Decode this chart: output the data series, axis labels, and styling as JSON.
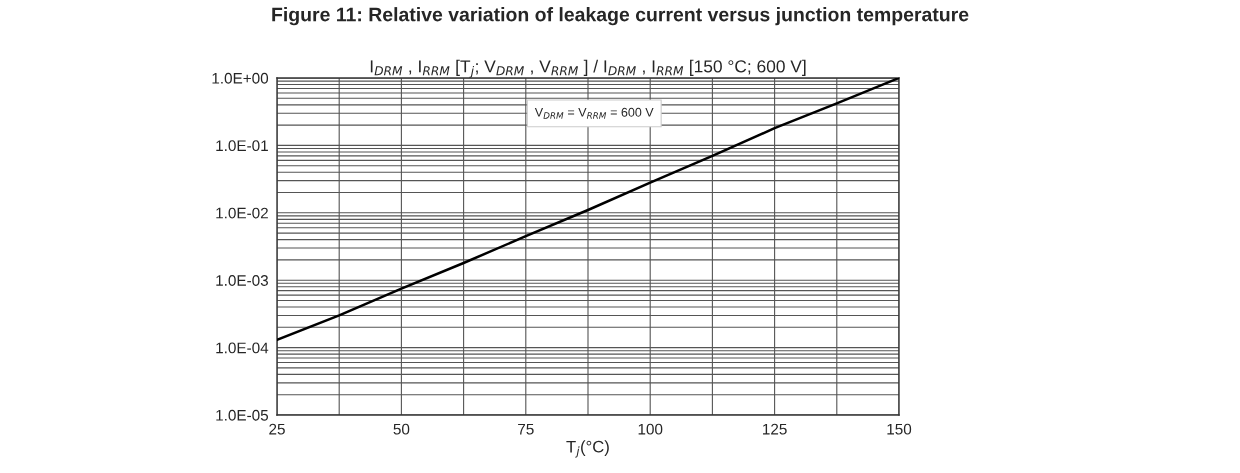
{
  "chart_data": {
    "type": "line",
    "title": "Figure 11: Relative variation of leakage current versus junction temperature",
    "ylabel": "I$_{DRM}$ , I$_{RRM}$ [T$_{j}$; V$_{DRM}$ , V$_{RRM}$ ] / I$_{DRM}$ , I$_{RRM}$ [150 °C; 600 V]",
    "xlabel": "T$_{j}$(°C)",
    "annotations": [
      "V$_{DRM}$ = V$_{RRM}$ = 600 V"
    ],
    "x": [
      25,
      37.5,
      50,
      62.5,
      75,
      87.5,
      100,
      112.5,
      125,
      137.5,
      150
    ],
    "series": [
      {
        "color": "#000000",
        "values": [
          0.00013,
          0.0003,
          0.00075,
          0.0018,
          0.0045,
          0.011,
          0.028,
          0.07,
          0.18,
          0.42,
          1.0
        ]
      }
    ],
    "log": "y",
    "grid": true,
    "marker": "none",
    "line_style": "solid",
    "xlim": [
      25,
      150
    ],
    "xticks": [
      25,
      {
        "value": 37.5,
        "label": null
      },
      50,
      {
        "value": 62.5,
        "label": null
      },
      75,
      {
        "value": 87.5,
        "label": null
      },
      100,
      {
        "value": 112.5,
        "label": null
      },
      125,
      {
        "value": 137.5,
        "label": null
      },
      150
    ],
    "ylim": [
      1e-05,
      1.0
    ],
    "yticks": [
      {
        "value": 1e-05,
        "label": "1.0E-05"
      },
      {
        "value": 2e-05,
        "label": null
      },
      {
        "value": 3e-05,
        "label": null
      },
      {
        "value": 4e-05,
        "label": null
      },
      {
        "value": 5e-05,
        "label": null
      },
      {
        "value": 6e-05,
        "label": null
      },
      {
        "value": 7e-05,
        "label": null
      },
      {
        "value": 8e-05,
        "label": null
      },
      {
        "value": 9e-05,
        "label": null
      },
      {
        "value": 0.0001,
        "label": "1.0E-04"
      },
      {
        "value": 0.0002,
        "label": null
      },
      {
        "value": 0.0003,
        "label": null
      },
      {
        "value": 0.0004,
        "label": null
      },
      {
        "value": 0.0005,
        "label": null
      },
      {
        "value": 0.0006,
        "label": null
      },
      {
        "value": 0.0007,
        "label": null
      },
      {
        "value": 0.0008,
        "label": null
      },
      {
        "value": 0.0009,
        "label": null
      },
      {
        "value": 0.001,
        "label": "1.0E-03"
      },
      {
        "value": 0.002,
        "label": null
      },
      {
        "value": 0.003,
        "label": null
      },
      {
        "value": 0.004,
        "label": null
      },
      {
        "value": 0.005,
        "label": null
      },
      {
        "value": 0.006,
        "label": null
      },
      {
        "value": 0.007,
        "label": null
      },
      {
        "value": 0.008,
        "label": null
      },
      {
        "value": 0.009,
        "label": null
      },
      {
        "value": 0.01,
        "label": "1.0E-02"
      },
      {
        "value": 0.02,
        "label": null
      },
      {
        "value": 0.03,
        "label": null
      },
      {
        "value": 0.04,
        "label": null
      },
      {
        "value": 0.05,
        "label": null
      },
      {
        "value": 0.06,
        "label": null
      },
      {
        "value": 0.07,
        "label": null
      },
      {
        "value": 0.08,
        "label": null
      },
      {
        "value": 0.09,
        "label": null
      },
      {
        "value": 0.1,
        "label": "1.0E-01"
      },
      {
        "value": 0.2,
        "label": null
      },
      {
        "value": 0.3,
        "label": null
      },
      {
        "value": 0.4,
        "label": null
      },
      {
        "value": 0.5,
        "label": null
      },
      {
        "value": 0.6,
        "label": null
      },
      {
        "value": 0.7,
        "label": null
      },
      {
        "value": 0.8,
        "label": null
      },
      {
        "value": 0.9,
        "label": null
      },
      {
        "value": 1.0,
        "label": "1.0E+00"
      }
    ]
  }
}
